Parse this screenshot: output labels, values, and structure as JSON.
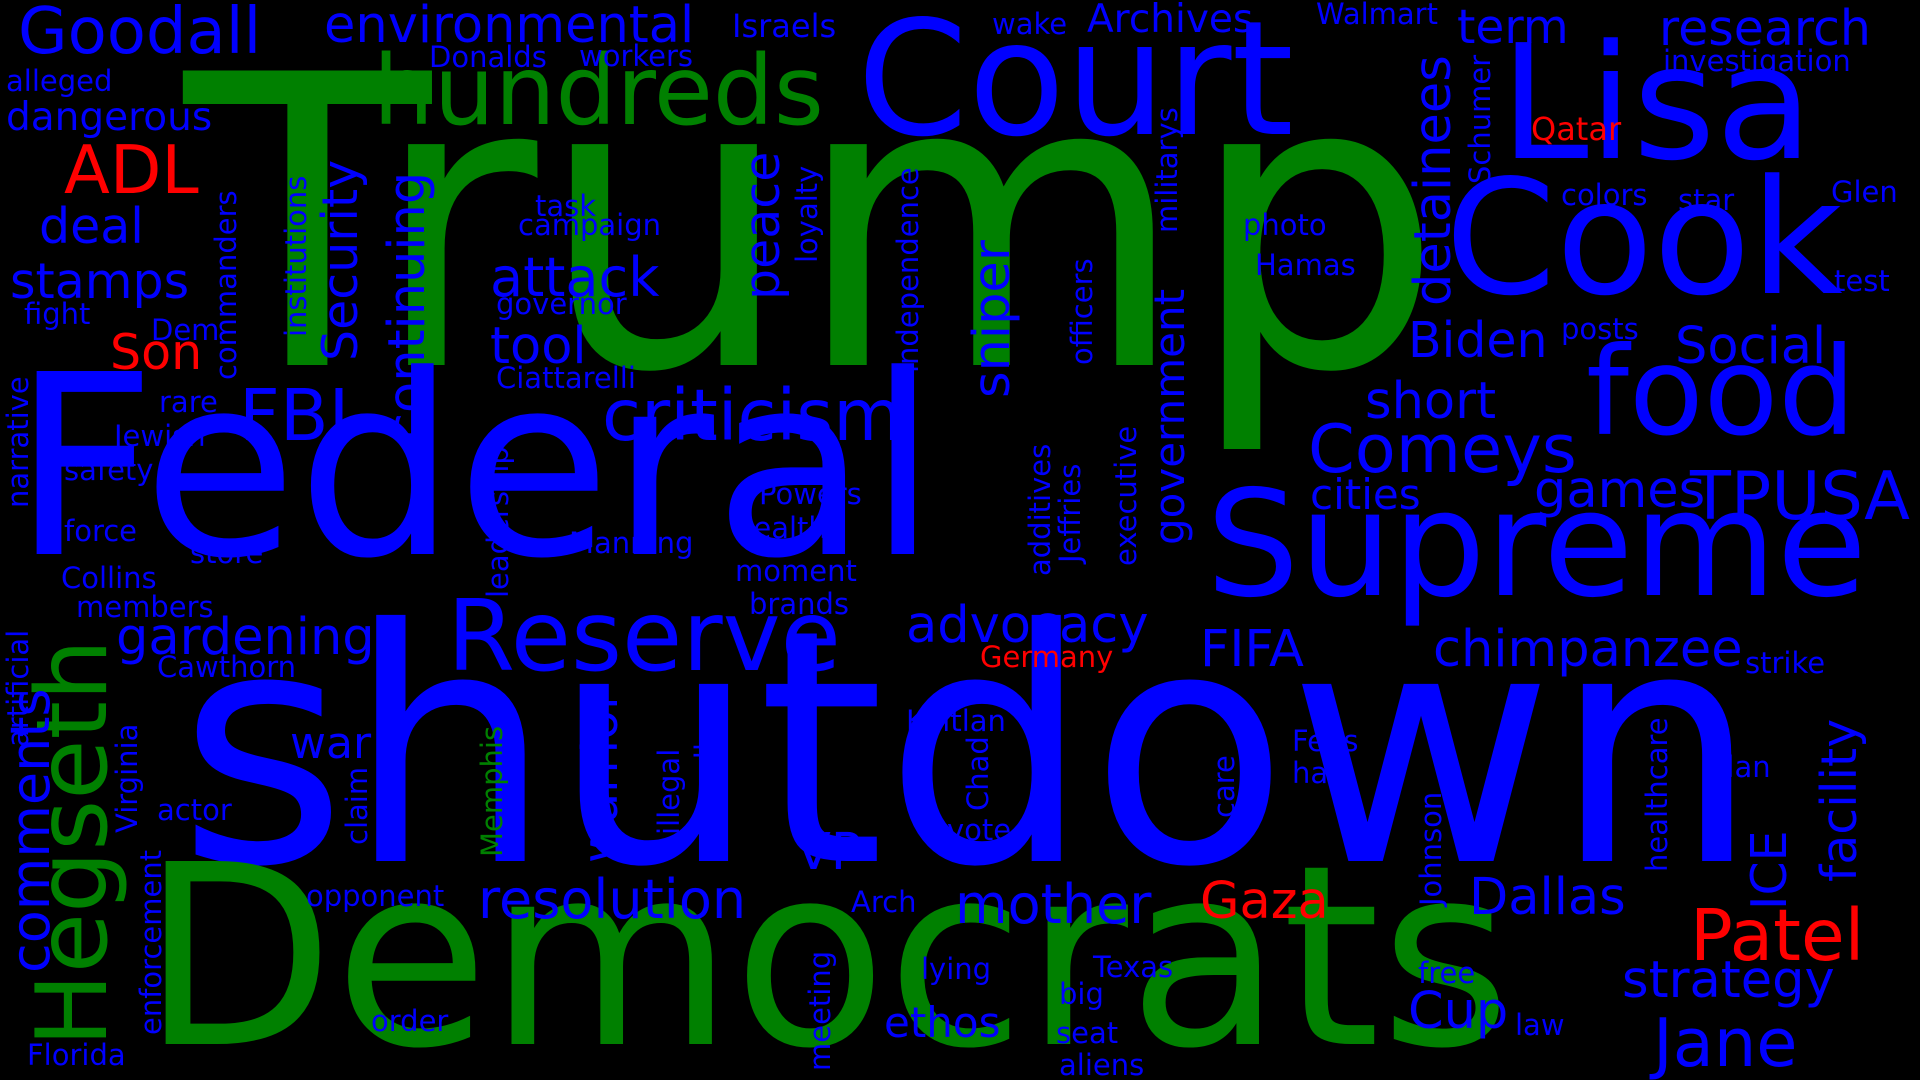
{
  "colors": {
    "background": "#000000",
    "blue": "#0000ff",
    "green": "#008000",
    "red": "#ff0000"
  },
  "words": [
    {
      "text": "Trump",
      "color": "green"
    },
    {
      "text": "shutdown",
      "color": "blue"
    },
    {
      "text": "Federal",
      "color": "blue"
    },
    {
      "text": "Democrats",
      "color": "green"
    },
    {
      "text": "Court",
      "color": "blue"
    },
    {
      "text": "Lisa",
      "color": "blue"
    },
    {
      "text": "Cook",
      "color": "blue"
    },
    {
      "text": "Supreme",
      "color": "blue"
    },
    {
      "text": "food",
      "color": "blue"
    },
    {
      "text": "Reserve",
      "color": "blue"
    },
    {
      "text": "Hegseth",
      "color": "green"
    },
    {
      "text": "hundreds",
      "color": "green"
    },
    {
      "text": "Goodall",
      "color": "blue"
    },
    {
      "text": "research",
      "color": "blue"
    },
    {
      "text": "environmental",
      "color": "blue"
    },
    {
      "text": "Archives",
      "color": "blue"
    },
    {
      "text": "term",
      "color": "blue"
    },
    {
      "text": "Israels",
      "color": "blue"
    },
    {
      "text": "wake",
      "color": "blue"
    },
    {
      "text": "Walmart",
      "color": "blue"
    },
    {
      "text": "investigation",
      "color": "blue"
    },
    {
      "text": "Donalds",
      "color": "blue"
    },
    {
      "text": "workers",
      "color": "blue"
    },
    {
      "text": "alleged",
      "color": "blue"
    },
    {
      "text": "dangerous",
      "color": "blue"
    },
    {
      "text": "ADL",
      "color": "red"
    },
    {
      "text": "Qatar",
      "color": "red"
    },
    {
      "text": "deal",
      "color": "blue"
    },
    {
      "text": "stamps",
      "color": "blue"
    },
    {
      "text": "fight",
      "color": "blue"
    },
    {
      "text": "Son",
      "color": "red"
    },
    {
      "text": "Dem",
      "color": "blue"
    },
    {
      "text": "colors",
      "color": "blue"
    },
    {
      "text": "star",
      "color": "blue"
    },
    {
      "text": "Glen",
      "color": "blue"
    },
    {
      "text": "test",
      "color": "blue"
    },
    {
      "text": "task",
      "color": "blue"
    },
    {
      "text": "campaign",
      "color": "blue"
    },
    {
      "text": "attack",
      "color": "blue"
    },
    {
      "text": "governor",
      "color": "blue"
    },
    {
      "text": "tool",
      "color": "blue"
    },
    {
      "text": "photo",
      "color": "blue"
    },
    {
      "text": "Hamas",
      "color": "blue"
    },
    {
      "text": "Biden",
      "color": "blue"
    },
    {
      "text": "posts",
      "color": "blue"
    },
    {
      "text": "Social",
      "color": "blue"
    },
    {
      "text": "FBI",
      "color": "blue"
    },
    {
      "text": "criticism",
      "color": "blue"
    },
    {
      "text": "Ciattarelli",
      "color": "blue"
    },
    {
      "text": "short",
      "color": "blue"
    },
    {
      "text": "Comeys",
      "color": "blue"
    },
    {
      "text": "rare",
      "color": "blue"
    },
    {
      "text": "Jewish",
      "color": "blue"
    },
    {
      "text": "safety",
      "color": "blue"
    },
    {
      "text": "games",
      "color": "blue"
    },
    {
      "text": "TPUSA",
      "color": "blue"
    },
    {
      "text": "cities",
      "color": "blue"
    },
    {
      "text": "Powers",
      "color": "blue"
    },
    {
      "text": "health",
      "color": "blue"
    },
    {
      "text": "force",
      "color": "blue"
    },
    {
      "text": "Manning",
      "color": "blue"
    },
    {
      "text": "store",
      "color": "blue"
    },
    {
      "text": "Collins",
      "color": "blue"
    },
    {
      "text": "moment",
      "color": "blue"
    },
    {
      "text": "members",
      "color": "blue"
    },
    {
      "text": "brands",
      "color": "blue"
    },
    {
      "text": "gardening",
      "color": "blue"
    },
    {
      "text": "advocacy",
      "color": "blue"
    },
    {
      "text": "FIFA",
      "color": "blue"
    },
    {
      "text": "chimpanzee",
      "color": "blue"
    },
    {
      "text": "Cawthorn",
      "color": "blue"
    },
    {
      "text": "Germany",
      "color": "red"
    },
    {
      "text": "strike",
      "color": "blue"
    },
    {
      "text": "war",
      "color": "blue"
    },
    {
      "text": "Kaitlan",
      "color": "blue"
    },
    {
      "text": "Feds",
      "color": "blue"
    },
    {
      "text": "hats",
      "color": "blue"
    },
    {
      "text": "plan",
      "color": "blue"
    },
    {
      "text": "actor",
      "color": "blue"
    },
    {
      "text": "vote",
      "color": "blue"
    },
    {
      "text": "VP",
      "color": "blue"
    },
    {
      "text": "opponent",
      "color": "blue"
    },
    {
      "text": "resolution",
      "color": "blue"
    },
    {
      "text": "Arch",
      "color": "blue"
    },
    {
      "text": "mother",
      "color": "blue"
    },
    {
      "text": "Gaza",
      "color": "red"
    },
    {
      "text": "Dallas",
      "color": "blue"
    },
    {
      "text": "Patel",
      "color": "red"
    },
    {
      "text": "lying",
      "color": "blue"
    },
    {
      "text": "Texas",
      "color": "blue"
    },
    {
      "text": "free",
      "color": "blue"
    },
    {
      "text": "strategy",
      "color": "blue"
    },
    {
      "text": "big",
      "color": "blue"
    },
    {
      "text": "order",
      "color": "blue"
    },
    {
      "text": "ethos",
      "color": "blue"
    },
    {
      "text": "Cup",
      "color": "blue"
    },
    {
      "text": "law",
      "color": "blue"
    },
    {
      "text": "seat",
      "color": "blue"
    },
    {
      "text": "Jane",
      "color": "blue"
    },
    {
      "text": "Florida",
      "color": "blue"
    },
    {
      "text": "aliens",
      "color": "blue"
    },
    {
      "text": "peace",
      "color": "blue"
    },
    {
      "text": "loyalty",
      "color": "blue"
    },
    {
      "text": "Security",
      "color": "blue"
    },
    {
      "text": "continuing",
      "color": "blue"
    },
    {
      "text": "institutions",
      "color": "blue"
    },
    {
      "text": "commanders",
      "color": "blue"
    },
    {
      "text": "narrative",
      "color": "blue"
    },
    {
      "text": "artificial",
      "color": "blue"
    },
    {
      "text": "comments",
      "color": "blue"
    },
    {
      "text": "Virginia",
      "color": "blue"
    },
    {
      "text": "enforcement",
      "color": "blue"
    },
    {
      "text": "claim",
      "color": "blue"
    },
    {
      "text": "leadership",
      "color": "blue"
    },
    {
      "text": "warrior",
      "color": "blue"
    },
    {
      "text": "illegal",
      "color": "blue"
    },
    {
      "text": "Powell",
      "color": "blue"
    },
    {
      "text": "House",
      "color": "blue"
    },
    {
      "text": "Memphis",
      "color": "green"
    },
    {
      "text": "meeting",
      "color": "blue"
    },
    {
      "text": "Chad",
      "color": "blue"
    },
    {
      "text": "sniper",
      "color": "blue"
    },
    {
      "text": "independence",
      "color": "blue"
    },
    {
      "text": "officers",
      "color": "blue"
    },
    {
      "text": "additives",
      "color": "blue"
    },
    {
      "text": "Jeffries",
      "color": "blue"
    },
    {
      "text": "executive",
      "color": "blue"
    },
    {
      "text": "government",
      "color": "blue"
    },
    {
      "text": "militarys",
      "color": "blue"
    },
    {
      "text": "detainees",
      "color": "blue"
    },
    {
      "text": "Schumer",
      "color": "blue"
    },
    {
      "text": "care",
      "color": "blue"
    },
    {
      "text": "Johnson",
      "color": "blue"
    },
    {
      "text": "healthcare",
      "color": "blue"
    },
    {
      "text": "ICE",
      "color": "blue"
    },
    {
      "text": "facility",
      "color": "blue"
    }
  ]
}
